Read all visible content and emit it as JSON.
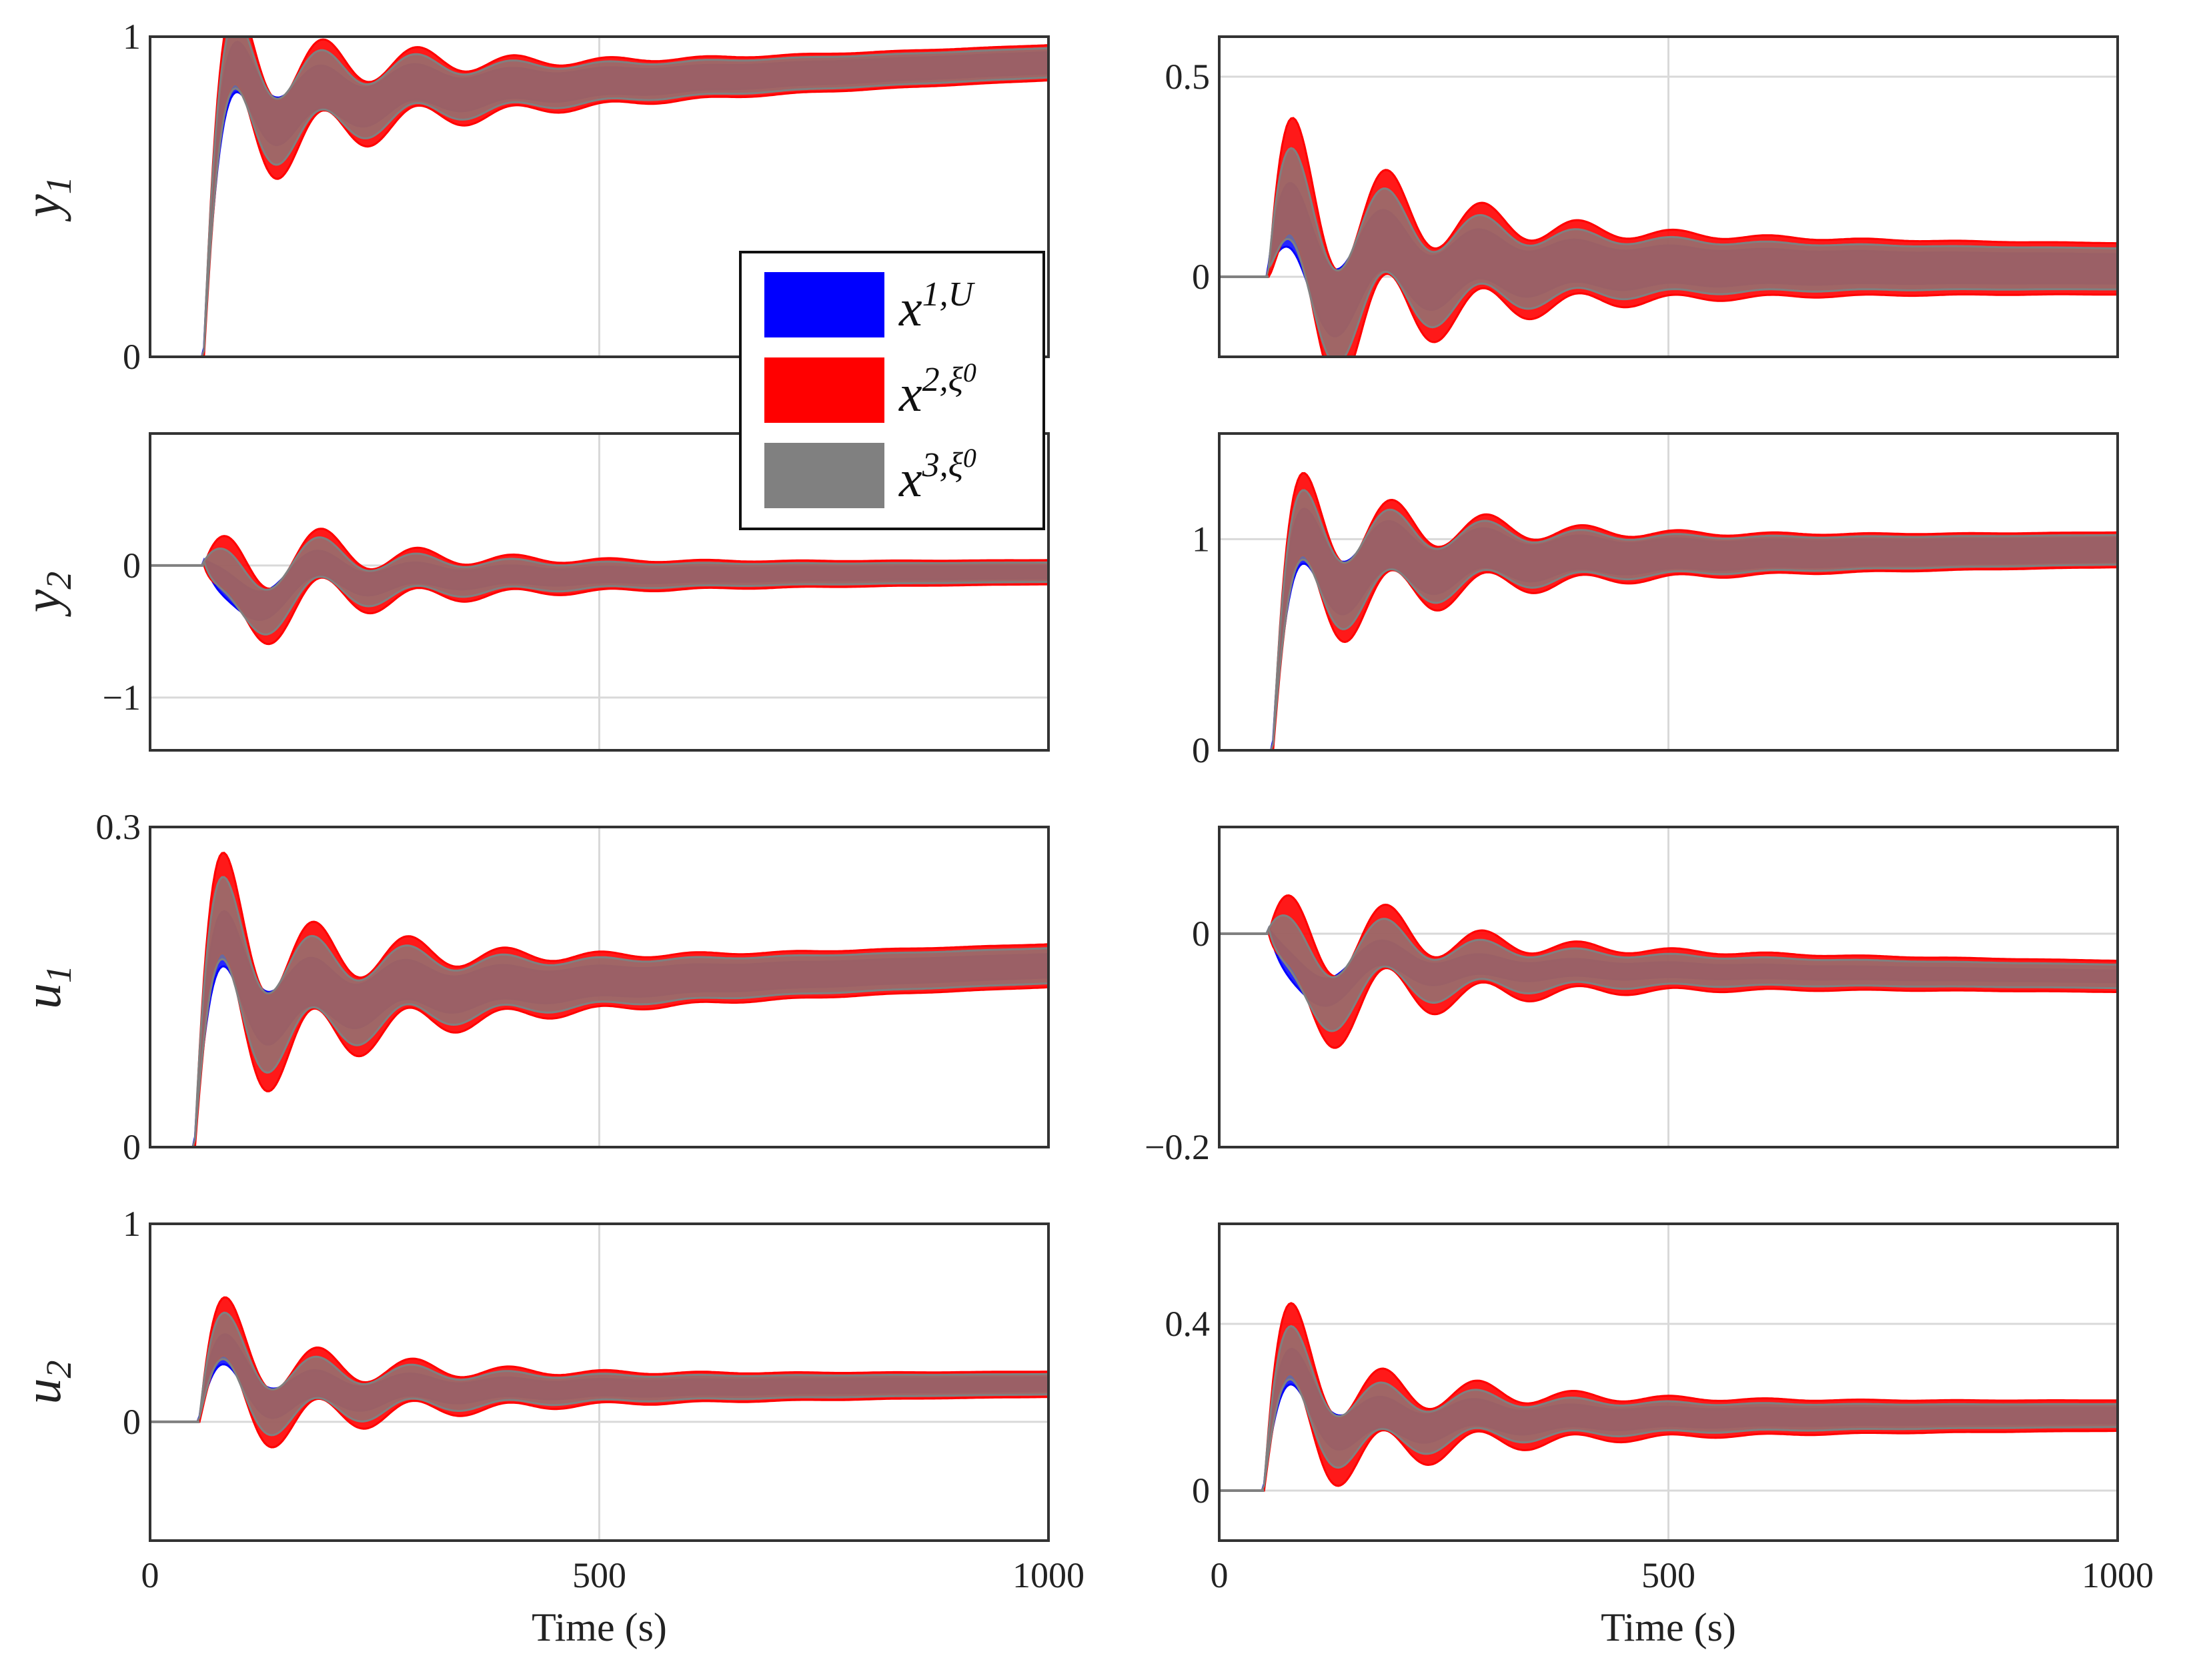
{
  "chart_data": [
    {
      "type": "area",
      "panel": "y1-left",
      "ylabel_main": "y",
      "ylabel_sub": "1",
      "xlim": [
        0,
        1000
      ],
      "ylim": [
        0,
        1
      ],
      "yticks": [
        0,
        1
      ],
      "xticks": [
        0,
        500,
        1000
      ],
      "xticklabels": [],
      "grid": true,
      "start": 60,
      "base": 0,
      "settle": 0.8,
      "ramp": 1.0,
      "drift": 0.12,
      "overshoot": 0.4,
      "w_blue": 0.18,
      "w_red": 0.3,
      "w_gray": 0.25
    },
    {
      "type": "area",
      "panel": "y1-right",
      "ylabel_main": "",
      "ylabel_sub": "",
      "xlim": [
        0,
        1000
      ],
      "ylim": [
        -0.2,
        0.6
      ],
      "yticks": [
        0,
        0.5
      ],
      "xticks": [
        0,
        500,
        1000
      ],
      "xticklabels": [],
      "grid": true,
      "start": 55,
      "base": 0,
      "settle": 0.03,
      "ramp": 0,
      "drift": -0.01,
      "overshoot": 0.45,
      "w_blue": 0.2,
      "w_red": 0.35,
      "w_gray": 0.28
    },
    {
      "type": "area",
      "panel": "y2-left",
      "ylabel_main": "y",
      "ylabel_sub": "2",
      "xlim": [
        0,
        1000
      ],
      "ylim": [
        -1.4,
        1.0
      ],
      "yticks": [
        -1,
        0
      ],
      "xticks": [
        0,
        500,
        1000
      ],
      "xticklabels": [],
      "grid": true,
      "start": 60,
      "base": 0,
      "settle": -0.1,
      "ramp": -1.2,
      "drift": 0.05,
      "overshoot": 1.4,
      "w_blue": 0.25,
      "w_red": 0.5,
      "w_gray": 0.4
    },
    {
      "type": "area",
      "panel": "y2-right",
      "ylabel_main": "",
      "ylabel_sub": "",
      "xlim": [
        0,
        1000
      ],
      "ylim": [
        0,
        1.5
      ],
      "yticks": [
        0,
        1
      ],
      "xticks": [
        0,
        500,
        1000
      ],
      "xticklabels": [],
      "grid": true,
      "start": 60,
      "base": 0,
      "settle": 0.9,
      "ramp": 0.9,
      "drift": 0.05,
      "overshoot": 0.35,
      "w_blue": 0.3,
      "w_red": 0.45,
      "w_gray": 0.38
    },
    {
      "type": "area",
      "panel": "u1-left",
      "ylabel_main": "u",
      "ylabel_sub": "1",
      "xlim": [
        0,
        1000
      ],
      "ylim": [
        0,
        0.3
      ],
      "yticks": [
        0,
        0.3
      ],
      "yticklabels": [
        "0",
        "0.3"
      ],
      "xticks": [
        0,
        500,
        1000
      ],
      "xticklabels": [],
      "grid": true,
      "start": 50,
      "base": 0,
      "settle": 0.14,
      "ramp": 0.28,
      "drift": 0.03,
      "overshoot": 0.5,
      "w_blue": 0.06,
      "w_red": 0.11,
      "w_gray": 0.09
    },
    {
      "type": "area",
      "panel": "u1-right",
      "ylabel_main": "",
      "ylabel_sub": "",
      "xlim": [
        0,
        1000
      ],
      "ylim": [
        -0.2,
        0.1
      ],
      "yticks": [
        -0.2,
        0
      ],
      "yticklabels": [
        "−0.2",
        "0"
      ],
      "xticks": [
        0,
        500,
        1000
      ],
      "xticklabels": [],
      "grid": true,
      "start": 55,
      "base": 0,
      "settle": -0.03,
      "ramp": -0.15,
      "drift": -0.01,
      "overshoot": 0.5,
      "w_blue": 0.03,
      "w_red": 0.08,
      "w_gray": 0.06
    },
    {
      "type": "area",
      "panel": "u2-left",
      "ylabel_main": "u",
      "ylabel_sub": "2",
      "xlim": [
        0,
        1000
      ],
      "ylim": [
        -0.6,
        1.0
      ],
      "yticks": [
        0,
        1
      ],
      "xticks": [
        0,
        500,
        1000
      ],
      "xticklabels": [
        "0",
        "500",
        "1000"
      ],
      "xlabel": "Time (s)",
      "grid": true,
      "start": 55,
      "base": 0,
      "settle": 0.15,
      "ramp": 0.7,
      "drift": 0.04,
      "overshoot": 0.6,
      "w_blue": 0.18,
      "w_red": 0.35,
      "w_gray": 0.28
    },
    {
      "type": "area",
      "panel": "u2-right",
      "ylabel_main": "",
      "ylabel_sub": "",
      "xlim": [
        0,
        1000
      ],
      "ylim": [
        -0.12,
        0.64
      ],
      "yticks": [
        0,
        0.4
      ],
      "xticks": [
        0,
        500,
        1000
      ],
      "xticklabels": [
        "0",
        "500",
        "1000"
      ],
      "xlabel": "Time (s)",
      "grid": true,
      "start": 50,
      "base": 0,
      "settle": 0.17,
      "ramp": 0.55,
      "drift": 0.01,
      "overshoot": 0.6,
      "w_blue": 0.1,
      "w_red": 0.2,
      "w_gray": 0.15
    }
  ],
  "legend": {
    "items": [
      {
        "base": "x",
        "sup": "1,",
        "sup2": "U",
        "color": "#0000ff"
      },
      {
        "base": "x",
        "sup": "2,ξ",
        "sup2": "0",
        "color": "#ff0000"
      },
      {
        "base": "x",
        "sup": "3,ξ",
        "sup2": "0",
        "color": "#808080"
      }
    ]
  },
  "colors": {
    "blue": "#0000ff",
    "red": "#ff0000",
    "gray": "#808080"
  }
}
